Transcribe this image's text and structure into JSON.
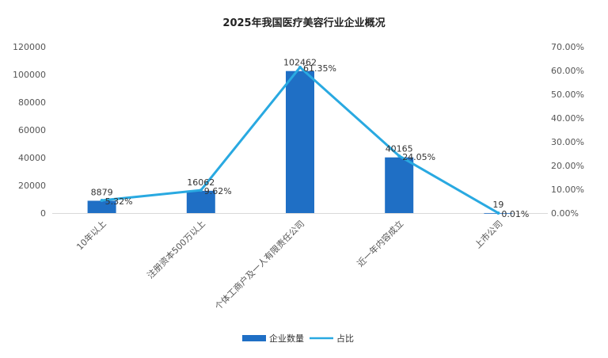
{
  "chart_data": {
    "type": "bar",
    "title": "2025年我国医疗美容行业企业概况",
    "categories": [
      "10年以上",
      "注册资本500万以上",
      "个体工商户及一人有限责任公司",
      "近一年内容成立",
      "上市公司"
    ],
    "series": [
      {
        "name": "企业数量",
        "type": "bar",
        "axis": "left",
        "color": "#1f6fc5",
        "values": [
          8879,
          16062,
          102462,
          40165,
          19
        ],
        "labels": [
          "8879",
          "16062",
          "102462",
          "40165",
          "19"
        ]
      },
      {
        "name": "占比",
        "type": "line",
        "axis": "right",
        "color": "#29a9e1",
        "values": [
          5.32,
          9.62,
          61.35,
          24.05,
          0.01
        ],
        "labels": [
          "5.32%",
          "9.62%",
          "61.35%",
          "24.05%",
          "0.01%"
        ]
      }
    ],
    "left_axis": {
      "min": 0,
      "max": 120000,
      "ticks": [
        "0",
        "20000",
        "40000",
        "60000",
        "80000",
        "100000",
        "120000"
      ]
    },
    "right_axis": {
      "min": 0,
      "max": 70,
      "ticks": [
        "0.00%",
        "10.00%",
        "20.00%",
        "30.00%",
        "40.00%",
        "50.00%",
        "60.00%",
        "70.00%"
      ]
    },
    "legend_position": "bottom",
    "grid": false
  }
}
